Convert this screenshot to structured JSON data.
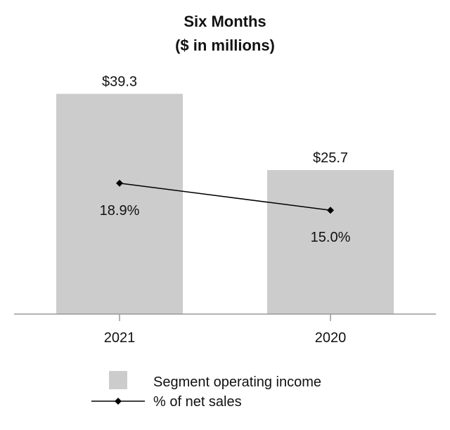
{
  "chart_data": {
    "type": "bar",
    "title": "Six Months",
    "subtitle": "($ in millions)",
    "categories": [
      "2021",
      "2020"
    ],
    "series": [
      {
        "name": "Segment operating income",
        "kind": "bar",
        "values": [
          39.3,
          25.7
        ],
        "labels": [
          "$39.3",
          "$25.7"
        ],
        "color": "#cccccc"
      },
      {
        "name": "% of net sales",
        "kind": "line",
        "values": [
          18.9,
          15.0
        ],
        "labels": [
          "18.9%",
          "15.0%"
        ],
        "color": "#000000"
      }
    ],
    "bar_ylim": [
      0,
      42
    ],
    "line_ylim": [
      0,
      34
    ],
    "grid": false,
    "legend_position": "bottom"
  }
}
